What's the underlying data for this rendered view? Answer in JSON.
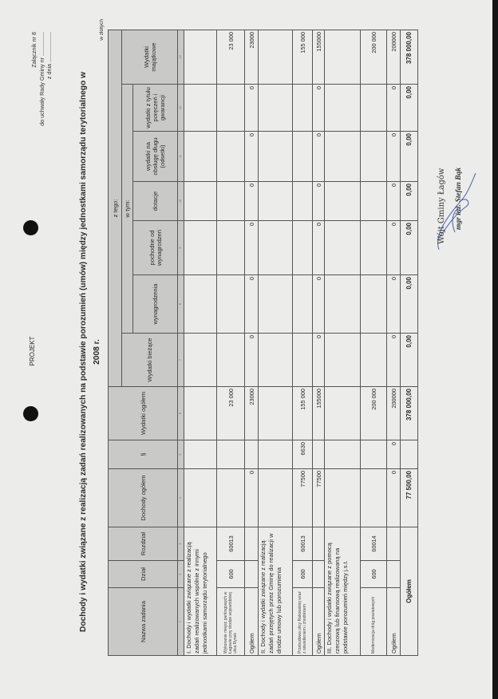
{
  "header": {
    "attachment": "Załącznik nr 8",
    "resolution": "do uchwały Rady Gminy nr ...............",
    "date": "z dnia ...................",
    "draft_label": "PROJEKT",
    "title_line1": "Dochody i wydatki związane z realizacją zadań realizowanych na podstawie porozumień (umów) między jednostkami samorządu terytorialnego w",
    "title_line2": "2008 r.",
    "unit": "w złotych"
  },
  "table": {
    "group_header": "z tego:",
    "subgroup_header": "w tym:",
    "columns": [
      "Nazwa zadania",
      "Dział",
      "Rozdział",
      "Dochody ogółem",
      "§",
      "Wydatki ogółem",
      "Wydatki bieżące",
      "wynagrodzenia",
      "pochodne od wynagrodzeń",
      "dotacje",
      "wydatki na obsługę długu (odsetki)",
      "wydatki z tytułu poręczeń i gwarancji",
      "Wydatki majątkowe"
    ],
    "column_numbers": [
      "1",
      "2",
      "3",
      "4",
      "5",
      "6",
      "7",
      "8",
      "9",
      "10",
      "11",
      "12",
      "13"
    ],
    "rows": [
      {
        "type": "section",
        "label": "I. Dochody i wydatki związane z realizacją zadań realizowanych wspólnie z innymi jednostkami samorządu terytorialnego"
      },
      {
        "type": "item",
        "cells": [
          "Wykonanie miejsc parkingowych w Łagowie przy drodze wojewódzkiej ulica Rynek",
          "600",
          "60013",
          "",
          "",
          "23 000",
          "",
          "",
          "",
          "",
          "",
          "",
          "23 000"
        ]
      },
      {
        "type": "subtotal",
        "cells": [
          "Ogółem",
          "",
          "",
          "0",
          "",
          "23000",
          "0",
          "0",
          "0",
          "0",
          "0",
          "0",
          "23000"
        ]
      },
      {
        "type": "section",
        "label": "II. Dochody i wydatki związane z realizacją zadań przejętych przez Gminę do realizacji w drodze umowy lub porozumienia"
      },
      {
        "type": "item",
        "cells": [
          "Przebudowa ulicy Rakowskiej wraz z oświetleniem i chodnikiem",
          "600",
          "60013",
          "77500",
          "6630",
          "155 000",
          "",
          "",
          "",
          "",
          "",
          "",
          "155 000"
        ]
      },
      {
        "type": "subtotal",
        "cells": [
          "Ogółem",
          "",
          "",
          "77500",
          "",
          "155000",
          "0",
          "0",
          "0",
          "0",
          "0",
          "0",
          "155000"
        ]
      },
      {
        "type": "section",
        "label": "III. Dochody i wydatki związane z pomocą rzeczową lub finansową realizowaną na podstawie porozumień między j.s.t."
      },
      {
        "type": "item",
        "cells": [
          "Modernizacja dróg powiatowych",
          "600",
          "60014",
          "",
          "",
          "200 000",
          "",
          "",
          "",
          "",
          "",
          "",
          "200 000"
        ]
      },
      {
        "type": "subtotal",
        "cells": [
          "Ogółem",
          "",
          "",
          "0",
          "0",
          "200000",
          "0",
          "0",
          "0",
          "0",
          "0",
          "0",
          "200000"
        ]
      },
      {
        "type": "grand",
        "label": "Ogółem",
        "cells": [
          "77 500,00",
          "",
          "378 000,00",
          "0,00",
          "0,00",
          "0,00",
          "0,00",
          "0,00",
          "0,00",
          "378 000,00"
        ]
      }
    ]
  },
  "signature": {
    "title": "Wójt Gminy Łagów",
    "name": "mgr inż. Stefan Bąk",
    "ink_color": "#4a5fb0"
  },
  "colors": {
    "header_fill": "#c9c9c8",
    "paper": "#ececea"
  }
}
